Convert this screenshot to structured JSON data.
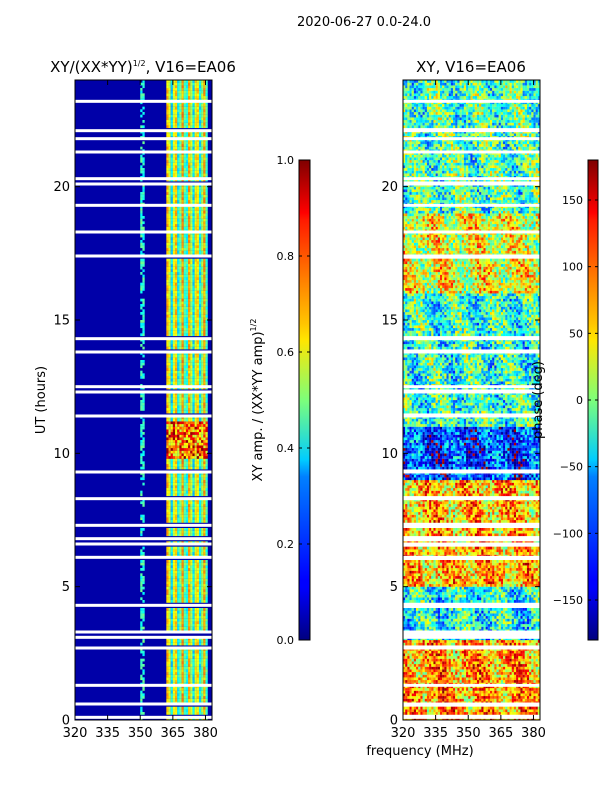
{
  "figure": {
    "suptitle": "2020-06-27 0.0-24.0",
    "shared_xlabel": "frequency (MHz)"
  },
  "chart_data": [
    {
      "type": "heatmap",
      "title_base": "XY/(XX*YY)",
      "title_exponent": "1/2",
      "title_suffix": ", V16=EA06",
      "xlabel": "",
      "ylabel": "UT (hours)",
      "xlim": [
        320,
        383
      ],
      "ylim": [
        0,
        24
      ],
      "xticks": [
        320,
        335,
        350,
        365,
        380
      ],
      "yticks": [
        0,
        5,
        10,
        15,
        20
      ],
      "colormap": "jet",
      "clim": [
        0.0,
        1.0
      ],
      "colorbar_label_base": "XY amp. / (XX*YY amp)",
      "colorbar_label_exponent": "1/2",
      "colorbar_ticks": [
        "0.0",
        "0.2",
        "0.4",
        "0.6",
        "0.8",
        "1.0"
      ],
      "colorbar_tick_values": [
        0.0,
        0.2,
        0.4,
        0.6,
        0.8,
        1.0
      ],
      "flagged_rows_hours": [
        0.1,
        0.6,
        1.3,
        2.7,
        3.1,
        3.3,
        4.3,
        6.1,
        6.6,
        6.8,
        7.3,
        8.3,
        9.3,
        11.4,
        12.3,
        12.5,
        13.8,
        14.3,
        17.4,
        18.3,
        19.3,
        20.1,
        20.3,
        21.3,
        21.8,
        22.1,
        23.2
      ],
      "bright_channel_range_mhz": [
        362,
        381
      ],
      "peak_time_window_hours": [
        9.8,
        11.2
      ]
    },
    {
      "type": "heatmap",
      "title": "XY, V16=EA06",
      "xlabel": "",
      "ylabel": "",
      "xlim": [
        320,
        383
      ],
      "ylim": [
        0,
        24
      ],
      "xticks": [
        320,
        335,
        350,
        365,
        380
      ],
      "yticks": [
        0,
        5,
        10,
        15,
        20
      ],
      "colormap": "jet",
      "clim": [
        -180,
        180
      ],
      "colorbar_label": "phase (deg)",
      "colorbar_ticks": [
        "−150",
        "−100",
        "−50",
        "0",
        "50",
        "100",
        "150"
      ],
      "colorbar_tick_values": [
        -150,
        -100,
        -50,
        0,
        50,
        100,
        150
      ],
      "flagged_rows_hours": [
        0.1,
        0.6,
        1.3,
        2.7,
        3.1,
        3.3,
        4.3,
        6.1,
        6.6,
        6.8,
        7.3,
        8.3,
        9.3,
        11.4,
        12.3,
        12.5,
        13.8,
        14.3,
        17.4,
        18.3,
        19.3,
        20.1,
        20.3,
        21.3,
        21.8,
        22.1,
        23.2
      ],
      "dominant_phase_by_band_deg": [
        {
          "hours": [
            0,
            3
          ],
          "phase": 80
        },
        {
          "hours": [
            3,
            5
          ],
          "phase": -40
        },
        {
          "hours": [
            5,
            9
          ],
          "phase": 70
        },
        {
          "hours": [
            9,
            11
          ],
          "phase": -110
        },
        {
          "hours": [
            11,
            16
          ],
          "phase": -30
        },
        {
          "hours": [
            16,
            19
          ],
          "phase": 40
        },
        {
          "hours": [
            19,
            24
          ],
          "phase": -20
        }
      ]
    }
  ]
}
